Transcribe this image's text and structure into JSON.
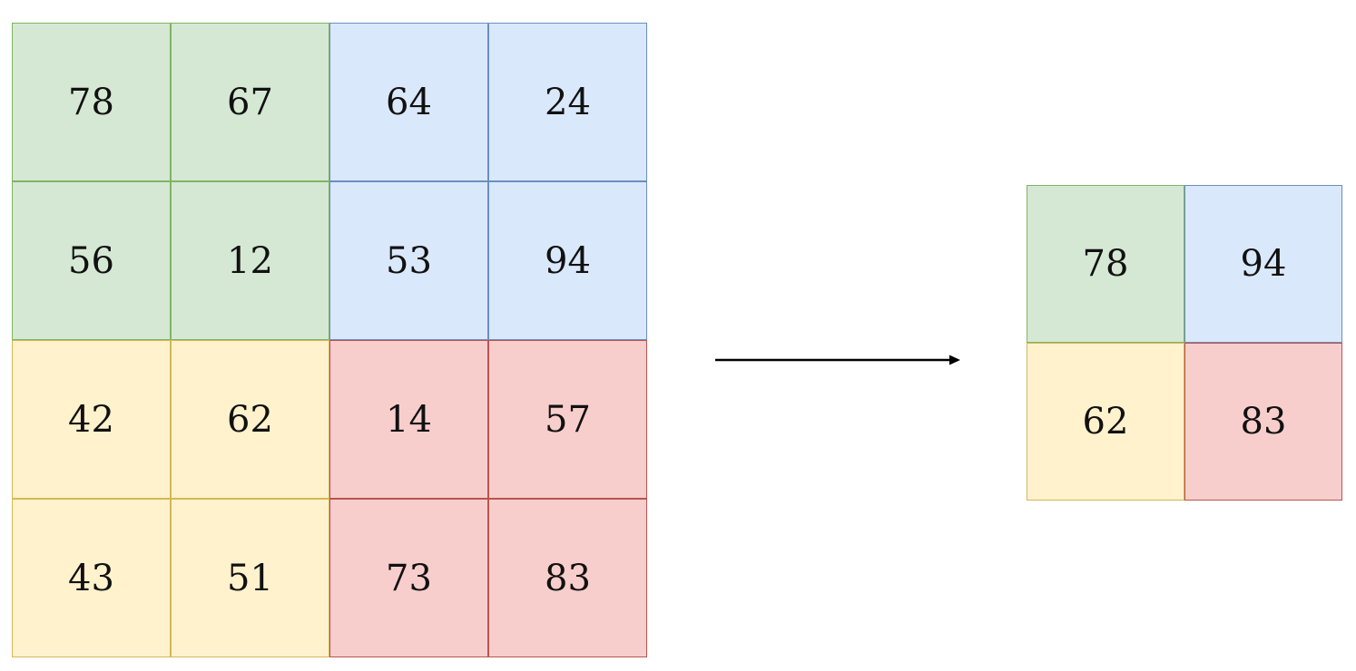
{
  "input_grid": {
    "rows": [
      [
        {
          "value": "78",
          "region": "green"
        },
        {
          "value": "67",
          "region": "green"
        },
        {
          "value": "64",
          "region": "blue"
        },
        {
          "value": "24",
          "region": "blue"
        }
      ],
      [
        {
          "value": "56",
          "region": "green"
        },
        {
          "value": "12",
          "region": "green"
        },
        {
          "value": "53",
          "region": "blue"
        },
        {
          "value": "94",
          "region": "blue"
        }
      ],
      [
        {
          "value": "42",
          "region": "yellow"
        },
        {
          "value": "62",
          "region": "yellow"
        },
        {
          "value": "14",
          "region": "red"
        },
        {
          "value": "57",
          "region": "red"
        }
      ],
      [
        {
          "value": "43",
          "region": "yellow"
        },
        {
          "value": "51",
          "region": "yellow"
        },
        {
          "value": "73",
          "region": "red"
        },
        {
          "value": "83",
          "region": "red"
        }
      ]
    ]
  },
  "output_grid": {
    "rows": [
      [
        {
          "value": "78",
          "region": "green"
        },
        {
          "value": "94",
          "region": "blue"
        }
      ],
      [
        {
          "value": "62",
          "region": "yellow"
        },
        {
          "value": "83",
          "region": "red"
        }
      ]
    ]
  },
  "colors": {
    "green": {
      "fill": "#d5e8d4",
      "stroke": "#82b366"
    },
    "blue": {
      "fill": "#dae8fc",
      "stroke": "#6c8ebf"
    },
    "yellow": {
      "fill": "#fff2cc",
      "stroke": "#d6b656"
    },
    "red": {
      "fill": "#f8cecc",
      "stroke": "#b85450"
    },
    "arrow": "#000000"
  },
  "icons": {
    "arrow": "right-arrow-icon"
  }
}
